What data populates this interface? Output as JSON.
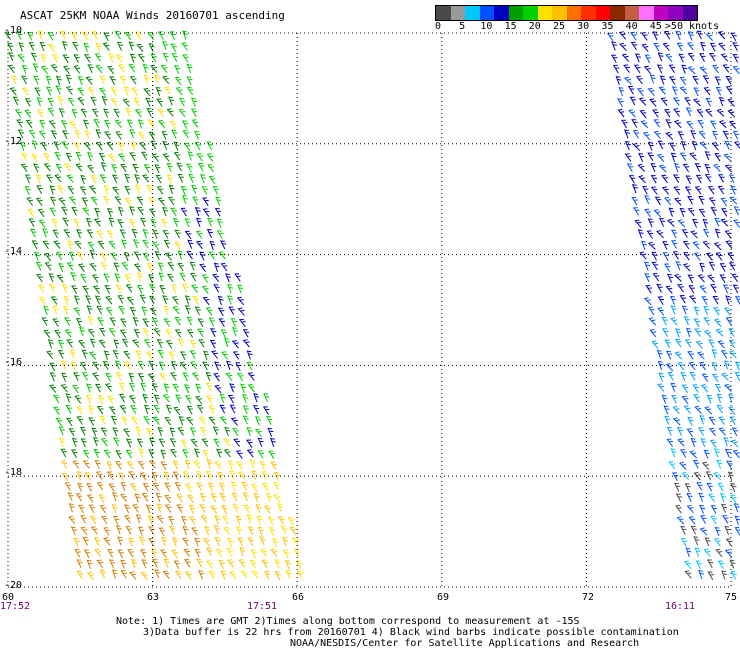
{
  "title": "ASCAT 25KM NOAA Winds 20160701 ascending",
  "colorbar": {
    "colors": [
      "#4a4a4a",
      "#9a9a9a",
      "#00c8ff",
      "#0050ff",
      "#0000c0",
      "#00a000",
      "#00d000",
      "#ffe000",
      "#ffc000",
      "#ff7000",
      "#ff3000",
      "#ff0000",
      "#8a2800",
      "#c06040",
      "#ff70ff",
      "#c000c0",
      "#9000c0",
      "#5000a0"
    ],
    "labels": [
      "0",
      "5",
      "10",
      "15",
      "20",
      "25",
      "30",
      "35",
      "40",
      "45",
      ">50 knots"
    ]
  },
  "map": {
    "lon_range": [
      60,
      75
    ],
    "lat_range": [
      -20,
      -10
    ],
    "lat_labels": [
      "-10",
      "-12",
      "-14",
      "-16",
      "-18",
      "-20"
    ],
    "lon_labels": [
      "60",
      "63",
      "66",
      "69",
      "72",
      "75"
    ],
    "time_labels": [
      "17:52",
      "17:51",
      "16:11"
    ]
  },
  "notes": [
    "Note: 1) Times are GMT 2)Times along bottom correspond to measurement at -15S",
    "3)Data buffer is 22 hrs from 20160701 4) Black wind barbs indicate possible contamination",
    "NOAA/NESDIS/Center for Satellite Applications and Research"
  ]
}
